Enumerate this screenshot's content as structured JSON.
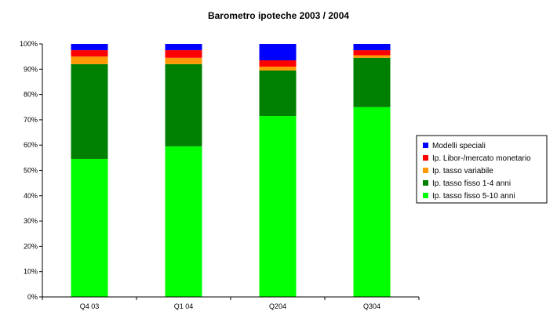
{
  "chart_data": {
    "type": "bar",
    "stacked": true,
    "title": "Barometro ipoteche 2003 / 2004",
    "xlabel": "",
    "ylabel": "",
    "ylim": [
      0,
      100
    ],
    "y_tick_format": "percent",
    "y_ticks": [
      "0%",
      "10%",
      "20%",
      "30%",
      "40%",
      "50%",
      "60%",
      "70%",
      "80%",
      "90%",
      "100%"
    ],
    "grid": false,
    "legend_position": "right",
    "categories": [
      "Q4 03",
      "Q1 04",
      "Q204",
      "Q304"
    ],
    "series": [
      {
        "name": "Ip. tasso fisso 5-10 anni",
        "color": "#00FF00",
        "values": [
          54.5,
          59.5,
          71.5,
          75.0
        ]
      },
      {
        "name": "Ip. tasso fisso 1-4 anni",
        "color": "#008000",
        "values": [
          37.5,
          32.5,
          18.0,
          19.5
        ]
      },
      {
        "name": "Ip. tasso variabile",
        "color": "#FF9900",
        "values": [
          3.0,
          2.5,
          1.5,
          1.0
        ]
      },
      {
        "name": "Ip. Libor-/mercato monetario",
        "color": "#FF0000",
        "values": [
          2.5,
          3.0,
          2.5,
          2.0
        ]
      },
      {
        "name": "Modelli speciali",
        "color": "#0000FF",
        "values": [
          2.5,
          2.5,
          6.5,
          2.5
        ]
      }
    ]
  }
}
